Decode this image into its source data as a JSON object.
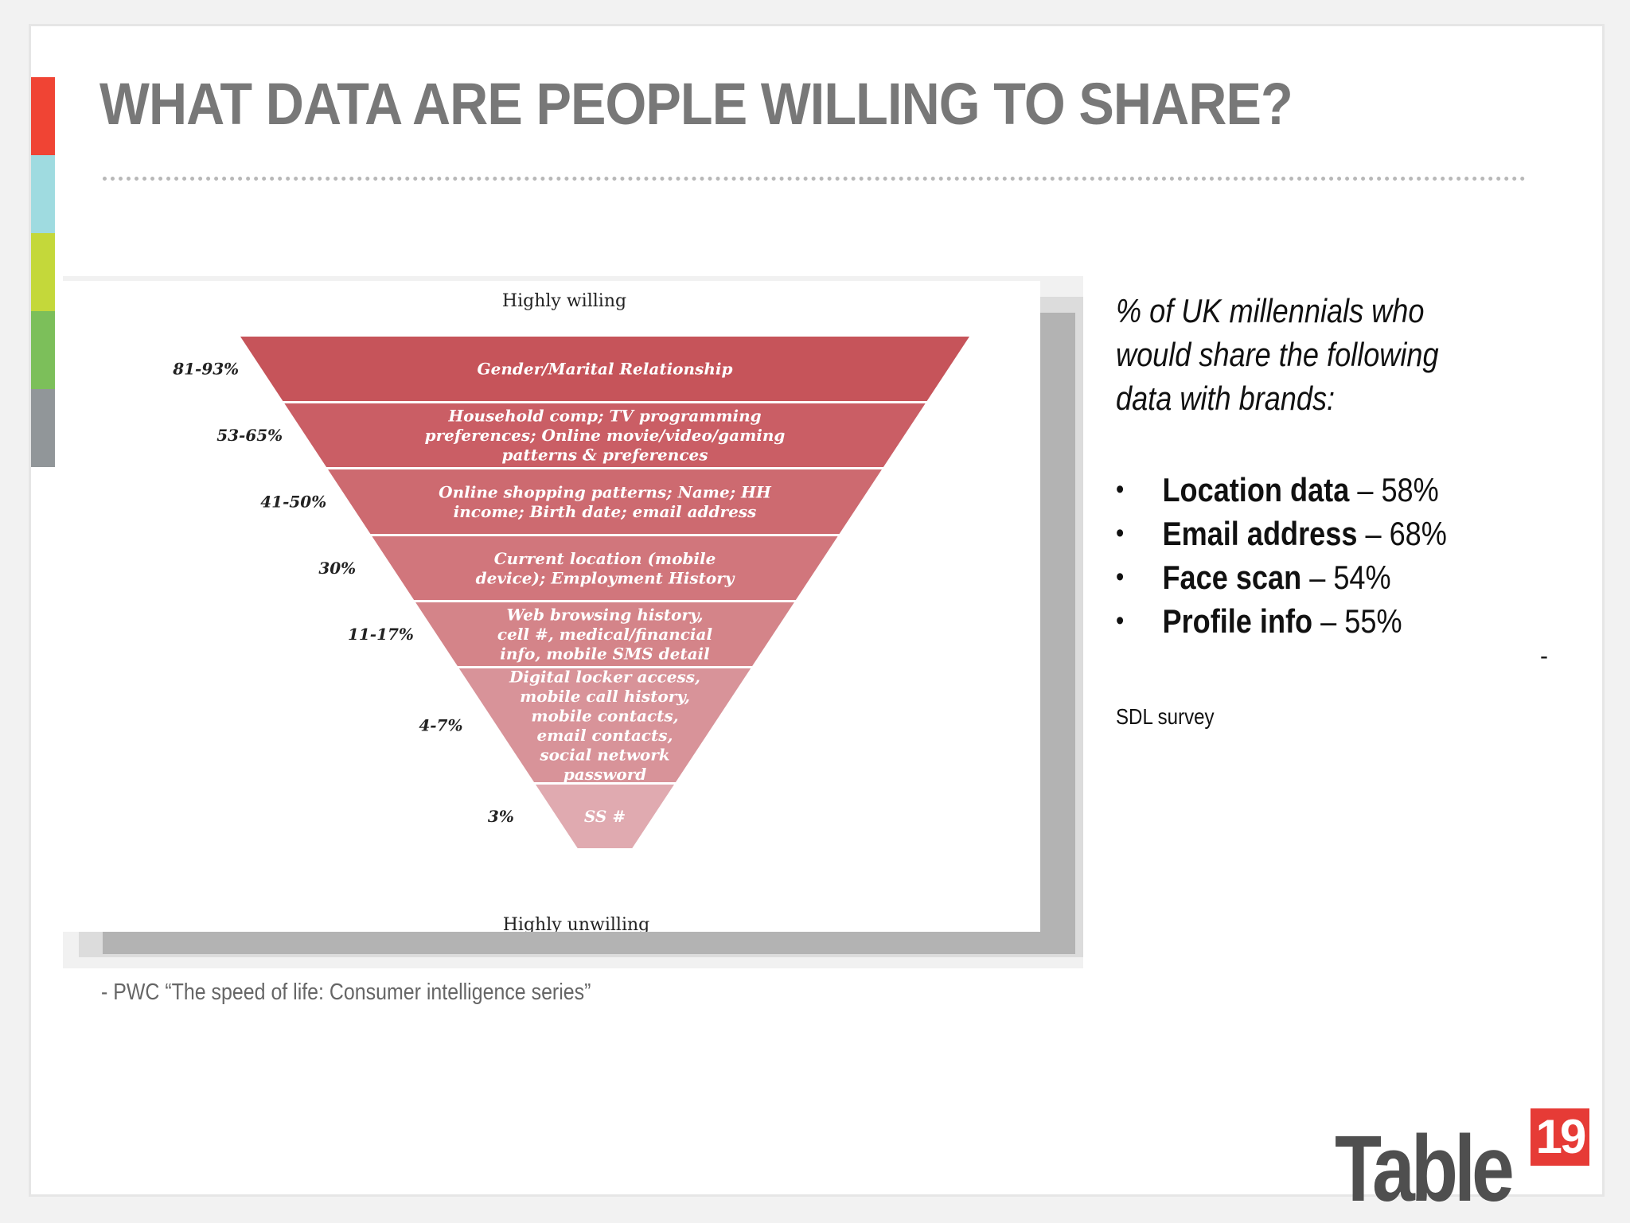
{
  "slide": {
    "title": "WHAT DATA ARE PEOPLE WILLING TO SHARE?",
    "accent_colors": [
      "#f04434",
      "#9fdbe0",
      "#c4d83a",
      "#7cbf5a",
      "#919699"
    ]
  },
  "pyramid": {
    "top_label": "Highly willing",
    "bottom_label": "Highly unwilling",
    "fill_colors": [
      "#c6545a",
      "#ca5e65",
      "#cd6a70",
      "#d1767c",
      "#d48489",
      "#d89399",
      "#e0aab0"
    ],
    "tiers": [
      {
        "percent": "81-93%",
        "lines": [
          "Gender/Marital Relationship"
        ]
      },
      {
        "percent": "53-65%",
        "lines": [
          "Household comp; TV programming",
          "preferences; Online movie/video/gaming",
          "patterns & preferences"
        ]
      },
      {
        "percent": "41-50%",
        "lines": [
          "Online shopping patterns; Name; HH",
          "income; Birth date; email address"
        ]
      },
      {
        "percent": "30%",
        "lines": [
          "Current location (mobile",
          "device); Employment History"
        ]
      },
      {
        "percent": "11-17%",
        "lines": [
          "Web browsing history,",
          "cell #, medical/financial",
          "info, mobile SMS detail"
        ]
      },
      {
        "percent": "4-7%",
        "lines": [
          "Digital locker access,",
          "mobile call history,",
          "mobile contacts,",
          "email contacts,",
          "social network",
          "password"
        ]
      },
      {
        "percent": "3%",
        "lines": [
          "SS #"
        ]
      }
    ]
  },
  "sidebar": {
    "intro": "% of UK millennials who would share the following data with brands:",
    "bullet_symbol": "•",
    "bullets": [
      {
        "label": "Location data",
        "value": " – 58%"
      },
      {
        "label": "Email address",
        "value": " – 68%"
      },
      {
        "label": "Face scan",
        "value": " – 54%"
      },
      {
        "label": "Profile info",
        "value": " – 55%"
      }
    ],
    "dash": "-",
    "source": "SDL survey"
  },
  "footnote": "- PWC “The speed of life: Consumer intelligence series”",
  "logo": {
    "word": "Table",
    "number": "19"
  }
}
